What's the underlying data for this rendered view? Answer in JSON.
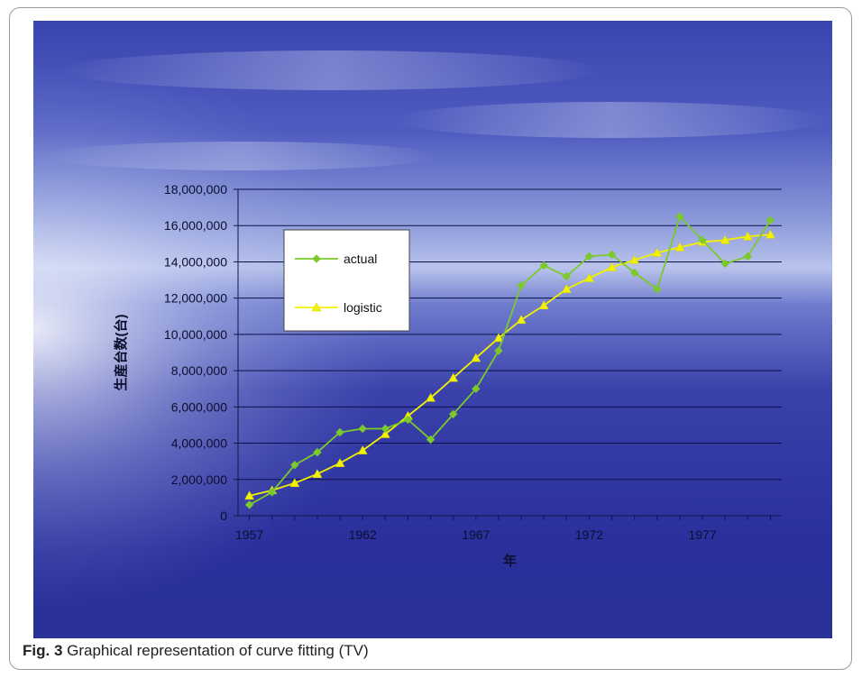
{
  "caption": {
    "label": "Fig. 3",
    "text": "Graphical representation of curve fitting (TV)"
  },
  "chart_data": {
    "type": "line",
    "title": "",
    "xlabel": "年",
    "ylabel": "生産台数(台)",
    "xlim": [
      1956.5,
      1980.5
    ],
    "ylim": [
      0,
      18000000
    ],
    "x_ticks": [
      1957,
      1962,
      1967,
      1972,
      1977
    ],
    "y_ticks": [
      0,
      2000000,
      4000000,
      6000000,
      8000000,
      10000000,
      12000000,
      14000000,
      16000000,
      18000000
    ],
    "y_tick_labels": [
      "0",
      "2,000,000",
      "4,000,000",
      "6,000,000",
      "8,000,000",
      "10,000,000",
      "12,000,000",
      "14,000,000",
      "16,000,000",
      "18,000,000"
    ],
    "x_tick_labels": [
      "1957",
      "1962",
      "1967",
      "1972",
      "1977"
    ],
    "grid": true,
    "legend_position": "upper-left",
    "x": [
      1957,
      1958,
      1959,
      1960,
      1961,
      1962,
      1963,
      1964,
      1965,
      1966,
      1967,
      1968,
      1969,
      1970,
      1971,
      1972,
      1973,
      1974,
      1975,
      1976,
      1977,
      1978,
      1979,
      1980
    ],
    "series": [
      {
        "name": "actual",
        "color": "#7bc92b",
        "marker": "diamond",
        "values": [
          600000,
          1300000,
          2800000,
          3500000,
          4600000,
          4800000,
          4800000,
          5300000,
          4200000,
          5600000,
          7000000,
          9100000,
          12700000,
          13800000,
          13200000,
          14300000,
          14400000,
          13400000,
          12500000,
          16500000,
          15200000,
          13900000,
          14300000,
          16300000
        ]
      },
      {
        "name": "logistic",
        "color": "#f2f200",
        "marker": "triangle",
        "values": [
          1100000,
          1400000,
          1800000,
          2300000,
          2900000,
          3600000,
          4500000,
          5500000,
          6500000,
          7600000,
          8700000,
          9800000,
          10800000,
          11600000,
          12500000,
          13100000,
          13700000,
          14100000,
          14500000,
          14800000,
          15100000,
          15200000,
          15400000,
          15500000
        ]
      }
    ]
  },
  "colors": {
    "sky_top": "#2e3a9c",
    "sea": "#2a2fa0",
    "gridline": "#0d1148",
    "axis": "#10154a",
    "tick_text": "#0b0f2e"
  }
}
